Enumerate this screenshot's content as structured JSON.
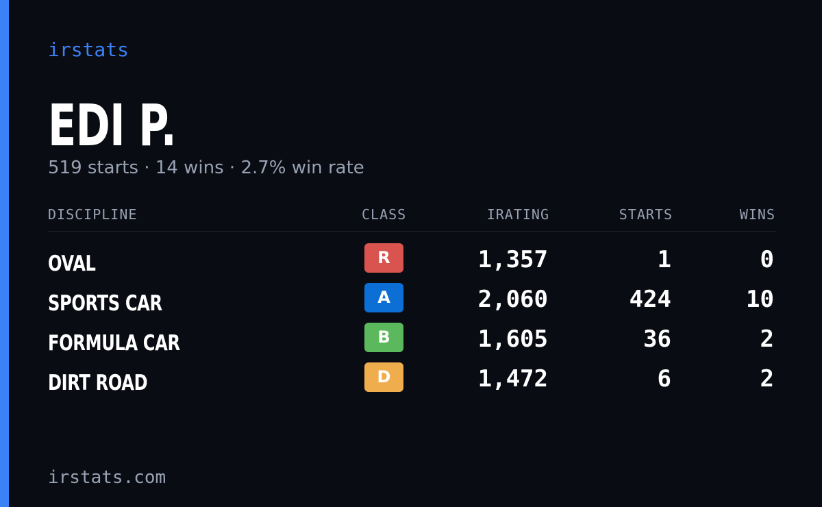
{
  "brand": "irstats",
  "driver": {
    "name": "EDI P.",
    "summary": "519 starts · 14 wins · 2.7% win rate"
  },
  "table": {
    "headers": {
      "discipline": "DISCIPLINE",
      "class": "CLASS",
      "irating": "IRATING",
      "starts": "STARTS",
      "wins": "WINS"
    },
    "rows": [
      {
        "discipline": "OVAL",
        "class": "R",
        "class_color": "#d9534f",
        "irating": "1,357",
        "starts": "1",
        "wins": "0"
      },
      {
        "discipline": "SPORTS CAR",
        "class": "A",
        "class_color": "#0c6fd6",
        "irating": "2,060",
        "starts": "424",
        "wins": "10"
      },
      {
        "discipline": "FORMULA CAR",
        "class": "B",
        "class_color": "#5cb85c",
        "irating": "1,605",
        "starts": "36",
        "wins": "2"
      },
      {
        "discipline": "DIRT ROAD",
        "class": "D",
        "class_color": "#f0ad4e",
        "irating": "1,472",
        "starts": "6",
        "wins": "2"
      }
    ]
  },
  "footer": "irstats.com",
  "colors": {
    "accent": "#3b82f6",
    "background": "#0a0c13",
    "muted_text": "#98a2b3"
  }
}
